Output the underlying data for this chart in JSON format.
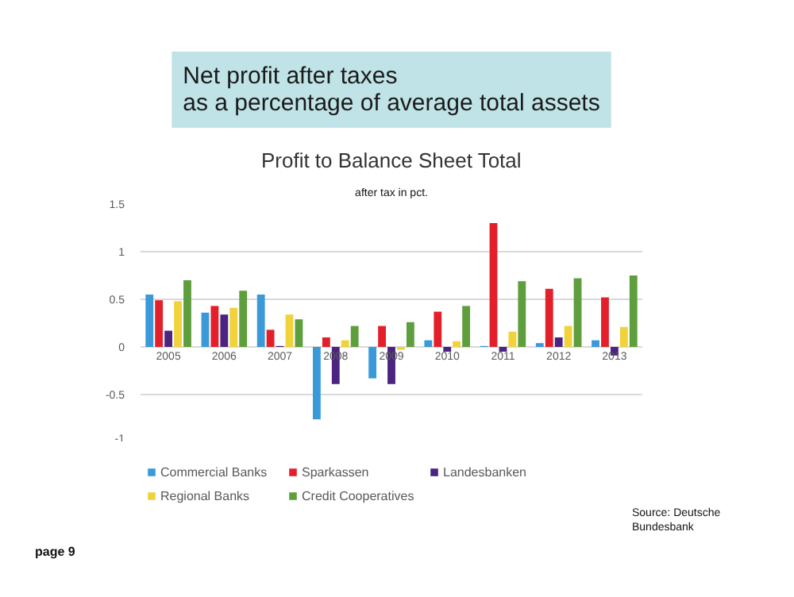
{
  "chart_data": {
    "type": "bar",
    "title": "Net profit after taxes\nas a percentage of average total assets",
    "subtitle": "Profit to Balance Sheet Total",
    "annotations": [
      "after tax in pct.",
      "Source: Deutsche\nBundesbank",
      "page 9"
    ],
    "categories": [
      "2005",
      "2006",
      "2007",
      "2008",
      "2009",
      "2010",
      "2011",
      "2012",
      "2013"
    ],
    "series": [
      {
        "name": "Commercial Banks",
        "color": "#3a9ad9",
        "values": [
          0.55,
          0.36,
          0.55,
          -0.76,
          -0.33,
          0.07,
          0.01,
          0.04,
          0.07
        ]
      },
      {
        "name": "Sparkassen",
        "color": "#e3202a",
        "values": [
          0.49,
          0.43,
          0.18,
          0.1,
          0.22,
          0.37,
          1.3,
          0.61,
          0.52
        ]
      },
      {
        "name": "Landesbanken",
        "color": "#4a2480",
        "values": [
          0.17,
          0.34,
          0.01,
          -0.39,
          -0.39,
          -0.05,
          -0.05,
          0.1,
          -0.09
        ]
      },
      {
        "name": "Regional Banks",
        "color": "#f0d23a",
        "values": [
          0.48,
          0.41,
          0.34,
          0.07,
          -0.03,
          0.06,
          0.16,
          0.22,
          0.21
        ]
      },
      {
        "name": "Credit Cooperatives",
        "color": "#5e9e3c",
        "values": [
          0.7,
          0.59,
          0.29,
          0.22,
          0.26,
          0.43,
          0.69,
          0.72,
          0.75
        ]
      }
    ],
    "ylim": [
      -1,
      1.5
    ],
    "yticks": [
      -1,
      -0.5,
      0,
      0.5,
      1,
      1.5
    ],
    "grid": "y",
    "legend": "bottom"
  }
}
